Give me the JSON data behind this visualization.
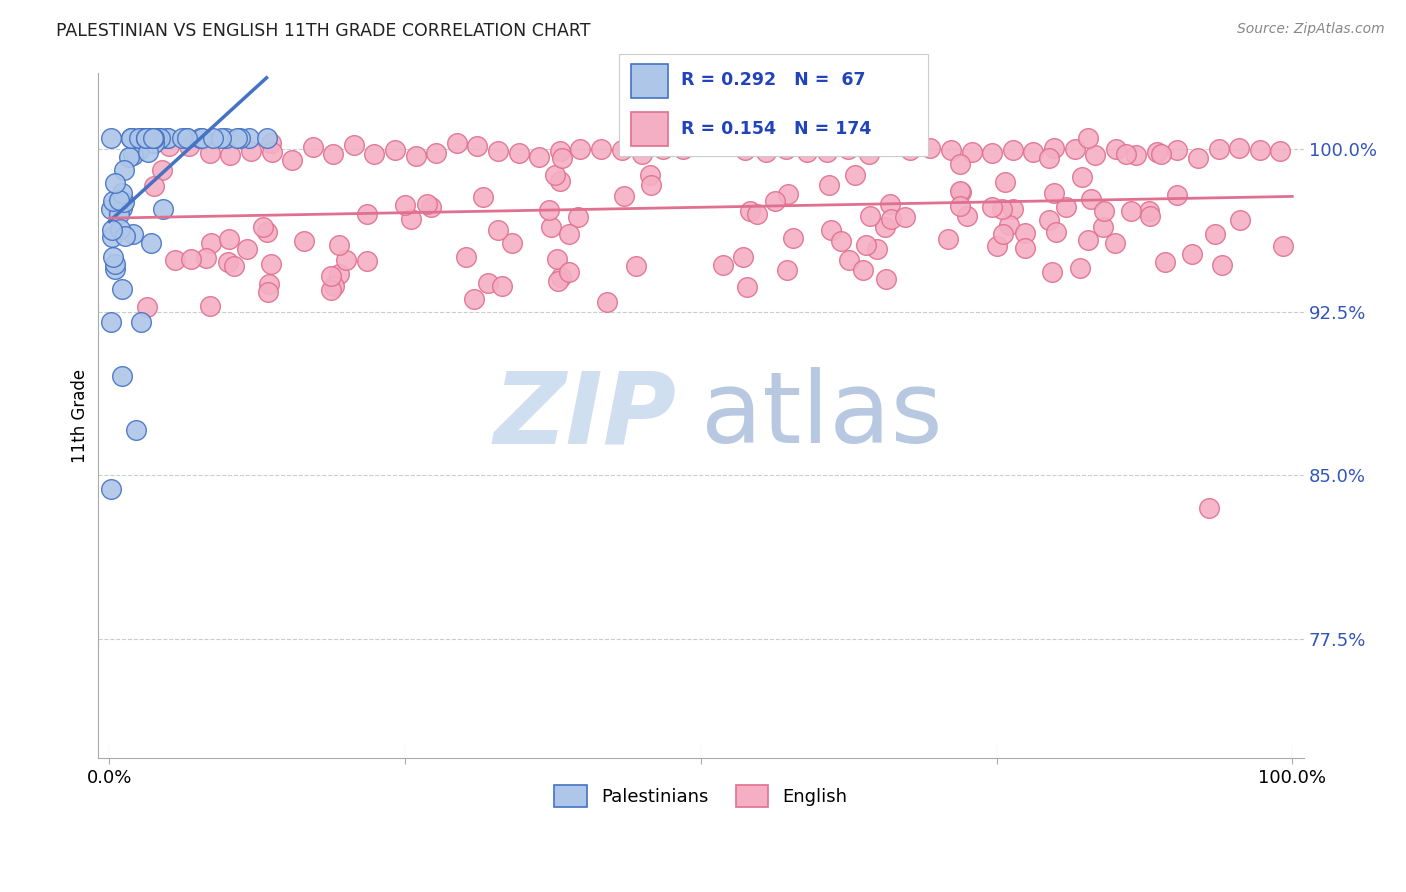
{
  "title": "PALESTINIAN VS ENGLISH 11TH GRADE CORRELATION CHART",
  "source": "Source: ZipAtlas.com",
  "ylabel": "11th Grade",
  "ylabel_ticks": [
    "77.5%",
    "85.0%",
    "92.5%",
    "100.0%"
  ],
  "ylabel_tick_vals": [
    0.775,
    0.85,
    0.925,
    1.0
  ],
  "xlim": [
    -0.01,
    1.01
  ],
  "ylim": [
    0.72,
    1.035
  ],
  "blue_color": "#4472c4",
  "pink_color": "#e07090",
  "blue_fill": "#aec6e8",
  "pink_fill": "#f4afc4",
  "watermark_zip": "ZIP",
  "watermark_atlas": "atlas",
  "watermark_color": "#d0dff0",
  "blue_R": 0.292,
  "blue_N": 67,
  "pink_R": 0.154,
  "pink_N": 174
}
